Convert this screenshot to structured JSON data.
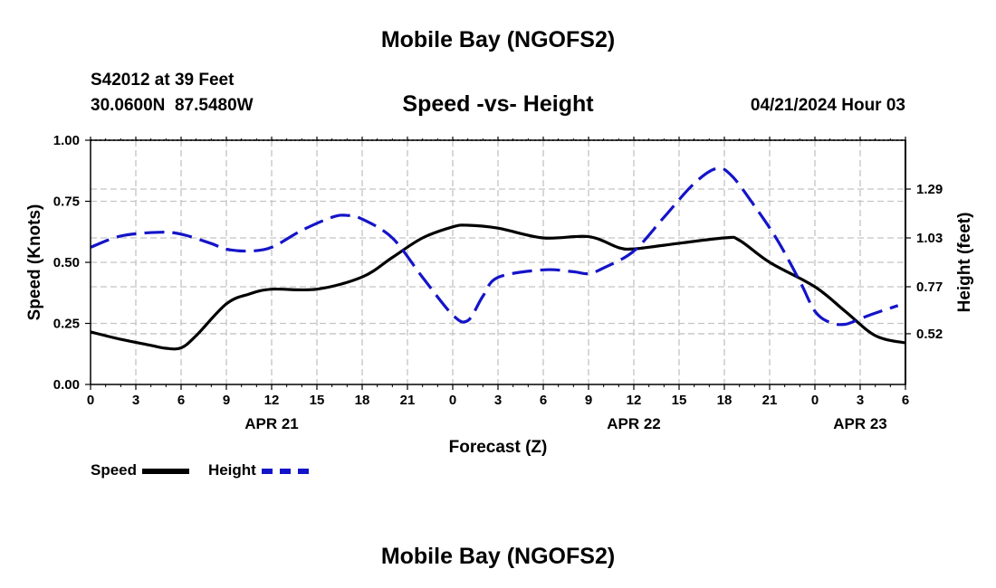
{
  "page": {
    "top_title": "Mobile Bay (NGOFS2)",
    "bottom_title": "Mobile Bay (NGOFS2)",
    "station_line": "S42012 at 39 Feet",
    "coords_line": "30.0600N  87.5480W",
    "datetime": "04/21/2024 Hour 03"
  },
  "legend": {
    "speed_label": "Speed",
    "height_label": "Height",
    "speed_color": "#000000",
    "height_color": "#1414c8"
  },
  "chart_data": {
    "type": "line",
    "title": "Speed -vs- Height",
    "xlabel": "Forecast (Z)",
    "ylabel_left": "Speed (Knots)",
    "ylabel_right": "Height (feet)",
    "x_range_hours": [
      0,
      54
    ],
    "x_ticks": [
      {
        "h": 0,
        "label": "0"
      },
      {
        "h": 3,
        "label": "3"
      },
      {
        "h": 6,
        "label": "6"
      },
      {
        "h": 9,
        "label": "9"
      },
      {
        "h": 12,
        "label": "12"
      },
      {
        "h": 15,
        "label": "15"
      },
      {
        "h": 18,
        "label": "18"
      },
      {
        "h": 21,
        "label": "21"
      },
      {
        "h": 24,
        "label": "0"
      },
      {
        "h": 27,
        "label": "3"
      },
      {
        "h": 30,
        "label": "6"
      },
      {
        "h": 33,
        "label": "9"
      },
      {
        "h": 36,
        "label": "12"
      },
      {
        "h": 39,
        "label": "15"
      },
      {
        "h": 42,
        "label": "18"
      },
      {
        "h": 45,
        "label": "21"
      },
      {
        "h": 48,
        "label": "0"
      },
      {
        "h": 51,
        "label": "3"
      },
      {
        "h": 54,
        "label": "6"
      }
    ],
    "date_labels": [
      {
        "h": 12,
        "label": "APR 21"
      },
      {
        "h": 36,
        "label": "APR 22"
      },
      {
        "h": 51,
        "label": "APR 23"
      }
    ],
    "left_axis": {
      "min": 0.0,
      "max": 1.0,
      "ticks": [
        {
          "v": 0.0,
          "label": "0.00"
        },
        {
          "v": 0.25,
          "label": "0.25"
        },
        {
          "v": 0.5,
          "label": "0.50"
        },
        {
          "v": 0.75,
          "label": "0.75"
        },
        {
          "v": 1.0,
          "label": "1.00"
        }
      ]
    },
    "right_axis": {
      "min": 0.25,
      "max": 1.55,
      "ticks": [
        {
          "v": 0.52,
          "label": "0.52"
        },
        {
          "v": 0.77,
          "label": "0.77"
        },
        {
          "v": 1.03,
          "label": "1.03"
        },
        {
          "v": 1.29,
          "label": "1.29"
        }
      ]
    },
    "grid": true,
    "series": [
      {
        "name": "Speed",
        "axis": "left",
        "color": "#000000",
        "dash": "solid",
        "points": [
          [
            0,
            0.215
          ],
          [
            2,
            0.185
          ],
          [
            4,
            0.16
          ],
          [
            5,
            0.148
          ],
          [
            6,
            0.15
          ],
          [
            7,
            0.2
          ],
          [
            9,
            0.33
          ],
          [
            10.5,
            0.37
          ],
          [
            12,
            0.39
          ],
          [
            15,
            0.39
          ],
          [
            18,
            0.44
          ],
          [
            20,
            0.52
          ],
          [
            22,
            0.6
          ],
          [
            24,
            0.645
          ],
          [
            25,
            0.652
          ],
          [
            27,
            0.64
          ],
          [
            30,
            0.6
          ],
          [
            33,
            0.605
          ],
          [
            35,
            0.56
          ],
          [
            36,
            0.555
          ],
          [
            38,
            0.57
          ],
          [
            42,
            0.6
          ],
          [
            43,
            0.59
          ],
          [
            45,
            0.5
          ],
          [
            48,
            0.4
          ],
          [
            50,
            0.3
          ],
          [
            52,
            0.2
          ],
          [
            54,
            0.17
          ]
        ]
      },
      {
        "name": "Height",
        "axis": "right",
        "color": "#1414c8",
        "dash": "dashed",
        "points": [
          [
            0,
            0.98
          ],
          [
            2,
            1.04
          ],
          [
            4.5,
            1.06
          ],
          [
            6,
            1.05
          ],
          [
            8,
            1.0
          ],
          [
            9,
            0.97
          ],
          [
            10.5,
            0.96
          ],
          [
            12,
            0.98
          ],
          [
            14,
            1.07
          ],
          [
            16,
            1.14
          ],
          [
            17,
            1.15
          ],
          [
            18,
            1.13
          ],
          [
            20,
            1.03
          ],
          [
            22,
            0.82
          ],
          [
            24,
            0.62
          ],
          [
            25,
            0.59
          ],
          [
            26,
            0.72
          ],
          [
            27,
            0.82
          ],
          [
            30,
            0.86
          ],
          [
            32,
            0.85
          ],
          [
            33,
            0.84
          ],
          [
            34,
            0.87
          ],
          [
            36,
            0.96
          ],
          [
            38,
            1.14
          ],
          [
            40,
            1.32
          ],
          [
            41.5,
            1.4
          ],
          [
            42.5,
            1.36
          ],
          [
            44,
            1.2
          ],
          [
            45.5,
            1.02
          ],
          [
            47,
            0.8
          ],
          [
            48,
            0.64
          ],
          [
            49,
            0.58
          ],
          [
            50,
            0.57
          ],
          [
            51,
            0.6
          ],
          [
            52,
            0.63
          ],
          [
            53.5,
            0.67
          ]
        ]
      }
    ]
  }
}
